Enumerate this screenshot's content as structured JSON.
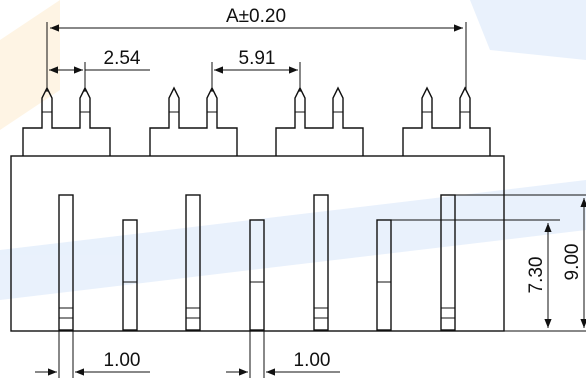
{
  "drawing": {
    "colors": {
      "line": "#111111",
      "watermark_blue": "#4a8fe8",
      "watermark_orange": "#f6a623"
    },
    "dimensions": {
      "overall_pitch": "A±0.20",
      "pin_pitch": "2.54",
      "group_pitch": "5.91",
      "lead_width_left": "1.00",
      "lead_width_right": "1.00",
      "lead_height_short": "7.30",
      "lead_height_tall": "9.00"
    }
  }
}
